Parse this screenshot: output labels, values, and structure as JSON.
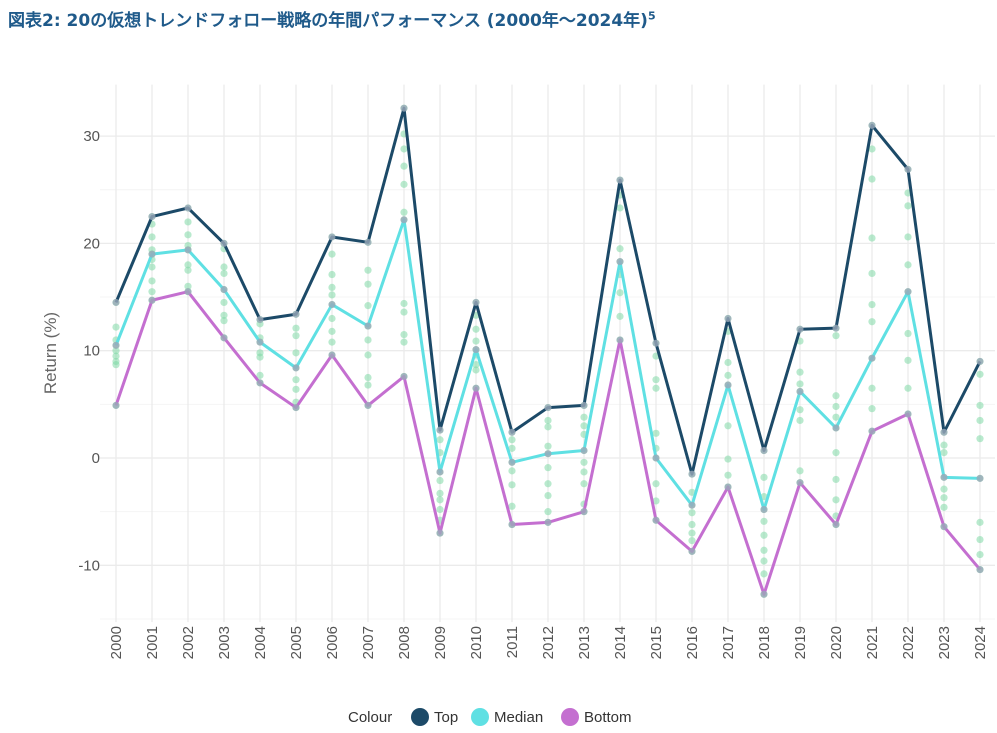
{
  "title": "図表2: 20の仮想トレンドフォロー戦略の年間パフォーマンス (2000年～2024年)",
  "title_footnote": "5",
  "chart_data": {
    "type": "line",
    "title": "図表2: 20の仮想トレンドフォロー戦略の年間パフォーマンス (2000年～2024年)",
    "xlabel": "",
    "ylabel": "Return (%)",
    "ylim": [
      -15.3,
      34.8
    ],
    "yticks": [
      -10,
      0,
      10,
      20,
      30
    ],
    "grid": true,
    "legend_title": "Colour",
    "legend_position": "bottom",
    "x": [
      "2000",
      "2001",
      "2002",
      "2003",
      "2004",
      "2005",
      "2006",
      "2007",
      "2008",
      "2009",
      "2010",
      "2011",
      "2012",
      "2013",
      "2014",
      "2015",
      "2016",
      "2017",
      "2018",
      "2019",
      "2020",
      "2021",
      "2022",
      "2023",
      "2024"
    ],
    "series": [
      {
        "name": "Top",
        "color": "#1c4a68",
        "values": [
          14.5,
          22.5,
          23.3,
          20.0,
          12.9,
          13.4,
          20.6,
          20.1,
          32.6,
          2.6,
          14.5,
          2.4,
          4.7,
          4.9,
          25.9,
          10.7,
          -1.5,
          13.0,
          0.7,
          12.0,
          12.1,
          31.0,
          26.9,
          2.4,
          9.0
        ]
      },
      {
        "name": "Median",
        "color": "#5fe0e3",
        "values": [
          10.5,
          19.0,
          19.4,
          15.7,
          10.8,
          8.4,
          14.3,
          12.3,
          22.2,
          -1.3,
          10.1,
          -0.4,
          0.4,
          0.7,
          18.3,
          0.0,
          -4.4,
          6.8,
          -4.8,
          6.2,
          2.8,
          9.3,
          15.5,
          -1.8,
          -1.9
        ]
      },
      {
        "name": "Bottom",
        "color": "#c46fd0",
        "values": [
          4.9,
          14.7,
          15.5,
          11.2,
          7.0,
          4.7,
          9.6,
          4.9,
          7.6,
          -7.0,
          6.5,
          -6.2,
          -6.0,
          -5.0,
          11.0,
          -5.8,
          -8.7,
          -2.7,
          -12.7,
          -2.3,
          -6.2,
          2.5,
          4.1,
          -6.4,
          -10.4
        ]
      }
    ],
    "strategy_points_color": "#7fd8a6",
    "strategy_points": [
      [
        14.5,
        12.2,
        11.0,
        10.5,
        10.0,
        9.5,
        9.0,
        8.7,
        4.9
      ],
      [
        22.5,
        21.8,
        20.6,
        19.4,
        19.0,
        18.5,
        17.8,
        16.5,
        15.5,
        14.7
      ],
      [
        23.3,
        22.0,
        20.8,
        19.8,
        19.4,
        18.0,
        17.5,
        16.0,
        15.5
      ],
      [
        20.0,
        19.5,
        17.8,
        17.2,
        15.7,
        14.5,
        13.3,
        12.8,
        11.2
      ],
      [
        12.9,
        12.5,
        11.2,
        10.8,
        9.8,
        9.4,
        7.7,
        7.0
      ],
      [
        13.4,
        12.1,
        11.4,
        9.8,
        8.4,
        7.3,
        6.4,
        5.2,
        4.7
      ],
      [
        20.6,
        19.0,
        17.1,
        15.9,
        15.2,
        14.3,
        13.0,
        11.8,
        10.8,
        9.6
      ],
      [
        20.1,
        17.5,
        16.2,
        14.2,
        12.3,
        11.0,
        9.6,
        7.5,
        6.8,
        4.9
      ],
      [
        32.6,
        30.2,
        28.8,
        27.2,
        25.5,
        22.9,
        22.2,
        14.4,
        13.6,
        11.5,
        10.8,
        7.6
      ],
      [
        2.6,
        1.7,
        0.5,
        -1.3,
        -2.1,
        -3.3,
        -3.9,
        -4.8,
        -5.8,
        -7.0
      ],
      [
        14.5,
        13.3,
        12.0,
        10.9,
        10.1,
        9.6,
        8.7,
        8.2,
        6.5
      ],
      [
        2.4,
        1.7,
        0.9,
        -0.4,
        -1.2,
        -2.5,
        -4.5,
        -6.2
      ],
      [
        4.7,
        3.5,
        2.9,
        1.1,
        0.4,
        -0.9,
        -2.4,
        -3.5,
        -5.0,
        -6.0
      ],
      [
        4.9,
        3.8,
        3.0,
        2.2,
        0.7,
        -0.4,
        -1.3,
        -2.4,
        -4.3,
        -5.0
      ],
      [
        25.9,
        24.5,
        23.3,
        19.5,
        18.3,
        17.1,
        15.4,
        13.2,
        11.0
      ],
      [
        10.7,
        9.5,
        7.3,
        6.5,
        2.3,
        0.9,
        0.0,
        -2.4,
        -4.0,
        -5.8
      ],
      [
        -1.5,
        -3.2,
        -4.4,
        -5.1,
        -6.2,
        -7.0,
        -7.7,
        -8.7
      ],
      [
        13.0,
        11.8,
        8.9,
        7.7,
        6.8,
        3.0,
        -0.1,
        -1.6,
        -2.7
      ],
      [
        0.7,
        -1.8,
        -3.6,
        -4.8,
        -5.9,
        -7.2,
        -8.6,
        -9.6,
        -10.8,
        -12.7
      ],
      [
        12.0,
        10.9,
        8.0,
        6.9,
        6.2,
        4.5,
        3.5,
        -1.2,
        -2.3
      ],
      [
        12.1,
        11.4,
        5.8,
        4.8,
        3.8,
        2.8,
        0.5,
        -2.0,
        -3.9,
        -5.4,
        -6.2
      ],
      [
        31.0,
        28.8,
        26.0,
        20.5,
        17.2,
        14.3,
        12.7,
        9.3,
        6.5,
        4.6,
        2.5
      ],
      [
        26.9,
        24.7,
        23.5,
        20.6,
        18.0,
        15.5,
        11.6,
        9.1,
        6.5,
        4.1
      ],
      [
        2.4,
        1.2,
        0.5,
        -1.8,
        -2.9,
        -3.7,
        -4.6,
        -6.4
      ],
      [
        9.0,
        7.8,
        4.9,
        3.5,
        1.8,
        -1.9,
        -6.0,
        -7.6,
        -9.0,
        -10.4
      ]
    ]
  }
}
